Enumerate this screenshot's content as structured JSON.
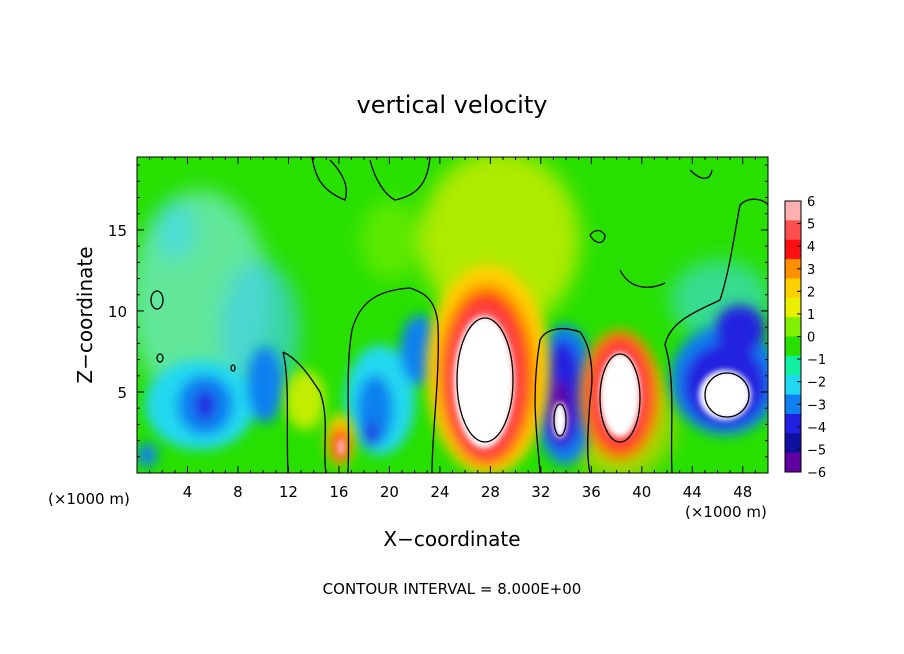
{
  "chart_data": {
    "type": "heatmap",
    "title": "vertical velocity",
    "xlabel": "X−coordinate",
    "ylabel": "Z−coordinate",
    "x_unit_left": "(×1000 m)",
    "x_unit_right": "(×1000 m)",
    "footer": "CONTOUR INTERVAL = 8.000E+00",
    "xlim": [
      0,
      50
    ],
    "ylim": [
      0,
      19.5
    ],
    "x_ticks": [
      4,
      8,
      12,
      16,
      20,
      24,
      28,
      32,
      36,
      40,
      44,
      48
    ],
    "x_tick_labels": [
      "4",
      "8",
      "12",
      "16",
      "20",
      "24",
      "28",
      "32",
      "36",
      "40",
      "44",
      "48"
    ],
    "y_ticks": [
      5,
      10,
      15
    ],
    "y_tick_labels": [
      "5",
      "10",
      "15"
    ],
    "colorbar": {
      "levels": [
        6,
        5,
        4,
        3,
        2,
        1,
        0,
        -1,
        -2,
        -3,
        -4,
        -5,
        -6
      ],
      "labels": [
        "6",
        "5",
        "4",
        "3",
        "2",
        "1",
        "0",
        "−1",
        "−2",
        "−3",
        "−4",
        "−5",
        "−6"
      ],
      "colors": [
        "#ffb0b0",
        "#ff5050",
        "#ff1010",
        "#ff9000",
        "#ffd000",
        "#e8f000",
        "#80f000",
        "#28e000",
        "#10f0a0",
        "#20d8f0",
        "#1080f0",
        "#2020e0",
        "#1010a0",
        "#6000a0"
      ]
    },
    "field": {
      "description_values": "approximate peak vertical velocity (m/s) of main cells",
      "cells": [
        {
          "x": 27.5,
          "z": 6.5,
          "value": 10
        },
        {
          "x": 38.5,
          "z": 5.5,
          "value": 9
        },
        {
          "x": 16.3,
          "z": 1.8,
          "value": 4
        },
        {
          "x": 34,
          "z": 4,
          "value": -7
        },
        {
          "x": 46,
          "z": 5.5,
          "value": -7
        },
        {
          "x": 5.5,
          "z": 4.5,
          "value": -4
        },
        {
          "x": 18.5,
          "z": 3,
          "value": -4
        },
        {
          "x": 10,
          "z": 11,
          "value": -2
        }
      ]
    }
  }
}
